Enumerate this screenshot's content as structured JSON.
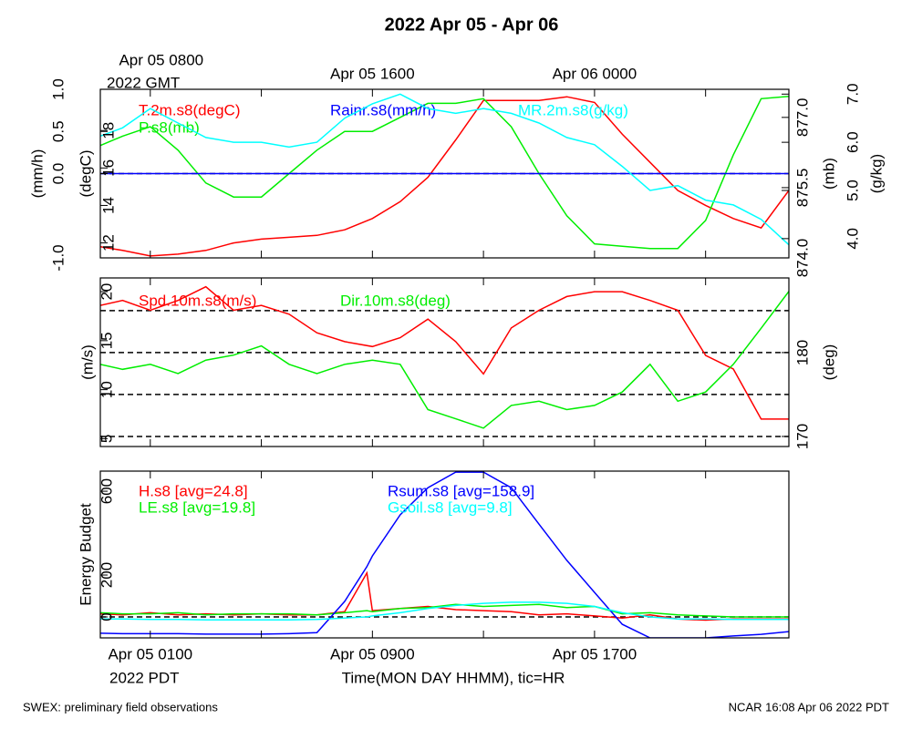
{
  "title": "2022 Apr 05 - Apr 06",
  "top_axis": {
    "labels": [
      {
        "value": 1,
        "label": "Apr 05 0800"
      },
      {
        "value": 9,
        "label": "Apr 05 1600"
      },
      {
        "value": 17,
        "label": "Apr 06 0000"
      }
    ],
    "sublabel": "2022 GMT"
  },
  "x_axis": {
    "xlim": [
      -0.8,
      24
    ],
    "xticks": [
      1,
      5,
      9,
      13,
      17,
      21
    ],
    "labels": [
      {
        "value": 1,
        "label": "Apr 05 0100"
      },
      {
        "value": 9,
        "label": "Apr 05 0900"
      },
      {
        "value": 17,
        "label": "Apr 05 1700"
      }
    ],
    "sublabel": "2022 PDT",
    "label": "Time(MON DAY HHMM), tic=HR"
  },
  "footer_left": "SWEX: preliminary field observations",
  "footer_right": "NCAR 16:08 Apr 06 2022 PDT",
  "chart_data": [
    {
      "type": "line",
      "x": [
        -0.8,
        0,
        1,
        2,
        3,
        4,
        5,
        6,
        7,
        8,
        9,
        10,
        11,
        12,
        13,
        14,
        15,
        16,
        17,
        18,
        19,
        20,
        21,
        22,
        23,
        24
      ],
      "axes": [
        {
          "label": "(mm/h)",
          "ylim": [
            -1,
            1
          ],
          "yticks": [
            {
              "value": -1,
              "label": "-1.0"
            },
            {
              "value": 0,
              "label": "0.0"
            },
            {
              "value": 0.5,
              "label": "0.5"
            },
            {
              "value": 1,
              "label": "1.0"
            }
          ],
          "grid_lines": [
            0
          ]
        },
        {
          "label": "(degC)",
          "ylim": [
            11.2,
            20.2
          ],
          "yticks": [
            12,
            14,
            16,
            18
          ]
        },
        {
          "label": "(mb)",
          "ylim": [
            874.0,
            877.6
          ],
          "yticks": [
            {
              "value": 874,
              "label": "874.0"
            },
            875.5,
            {
              "value": 877,
              "label": "877.0"
            }
          ]
        },
        {
          "label": "(g/kg)",
          "ylim": [
            3.6,
            7.1
          ],
          "yticks": [
            {
              "value": 4,
              "label": "4.0"
            },
            {
              "value": 5,
              "label": "5.0"
            },
            {
              "value": 6,
              "label": "6.0"
            },
            {
              "value": 7,
              "label": "7.0"
            }
          ]
        }
      ],
      "series": [
        {
          "name": "T.2m.s8(degC)",
          "color": "#ff0000",
          "axis": 1,
          "values": [
            11.8,
            11.6,
            11.3,
            11.4,
            11.6,
            12.0,
            12.2,
            12.3,
            12.4,
            12.7,
            13.3,
            14.2,
            15.5,
            17.5,
            19.6,
            19.6,
            19.6,
            19.8,
            19.5,
            17.8,
            16.3,
            14.8,
            14.0,
            13.3,
            12.8,
            14.8
          ]
        },
        {
          "name": "P.s8(mb)",
          "color": "#00ee00",
          "axis": 2,
          "values": [
            876.4,
            876.6,
            876.8,
            876.3,
            875.6,
            875.3,
            875.3,
            875.8,
            876.3,
            876.7,
            876.7,
            877.0,
            877.3,
            877.3,
            877.4,
            876.8,
            875.8,
            874.9,
            874.3,
            874.25,
            874.2,
            874.2,
            874.8,
            876.2,
            877.4,
            877.45
          ]
        },
        {
          "name": "Rainr.s8(mm/h)",
          "color": "#0000ff",
          "axis": 0,
          "values": [
            0,
            0,
            0,
            0,
            0,
            0,
            0,
            0,
            0,
            0,
            0,
            0,
            0,
            0,
            0,
            0,
            0,
            0,
            0,
            0,
            0,
            0,
            0,
            0,
            0,
            0
          ]
        },
        {
          "name": "MR.2m.s8(g/kg)",
          "color": "#00ffff",
          "axis": 3,
          "values": [
            6.13,
            6.3,
            6.7,
            6.4,
            6.1,
            6.0,
            6.0,
            5.9,
            6.0,
            6.5,
            6.8,
            7.0,
            6.7,
            6.6,
            6.7,
            6.6,
            6.4,
            6.1,
            5.95,
            5.5,
            5.0,
            5.1,
            4.8,
            4.7,
            4.4,
            3.87
          ]
        }
      ]
    },
    {
      "type": "line",
      "x": [
        -0.8,
        0,
        1,
        2,
        3,
        4,
        5,
        6,
        7,
        8,
        9,
        10,
        11,
        12,
        13,
        14,
        15,
        16,
        17,
        18,
        19,
        20,
        21,
        22,
        23,
        24
      ],
      "axes": [
        {
          "label": "(m/s)",
          "ylim": [
            4.2,
            21.4
          ],
          "yticks": [
            5,
            10,
            15,
            20
          ]
        },
        {
          "label": "(deg)",
          "ylim": [
            168.8,
            188.9
          ],
          "yticks": [
            170,
            180
          ],
          "grid_lines": [
            170,
            175,
            180,
            185
          ]
        }
      ],
      "series": [
        {
          "name": "Spd.10m.s8(m/s)",
          "color": "#ff0000",
          "axis": 0,
          "values": [
            18.6,
            19.1,
            18.1,
            19.1,
            20.5,
            18.1,
            18.6,
            17.7,
            15.8,
            14.9,
            14.4,
            15.3,
            17.2,
            14.9,
            11.6,
            16.3,
            18.1,
            19.5,
            20.0,
            20.0,
            19.1,
            18.1,
            13.5,
            12.1,
            7.0,
            7.0
          ]
        },
        {
          "name": "Dir.10m.s8(deg)",
          "color": "#00ee00",
          "axis": 1,
          "values": [
            178.6,
            178.0,
            178.6,
            177.5,
            179.1,
            179.7,
            180.8,
            178.6,
            177.5,
            178.6,
            179.1,
            178.6,
            173.2,
            172.1,
            171.0,
            173.7,
            174.2,
            173.2,
            173.7,
            175.3,
            178.6,
            174.2,
            175.3,
            178.6,
            182.9,
            187.3
          ]
        }
      ]
    },
    {
      "type": "line",
      "x": [
        -0.8,
        0,
        1,
        2,
        3,
        4,
        5,
        6,
        7,
        8,
        8.8,
        9,
        10,
        11,
        12,
        13,
        14,
        15,
        16,
        17,
        18,
        19,
        20,
        21,
        22,
        23,
        24
      ],
      "axes": [
        {
          "label": "Energy Budget",
          "ylim": [
            -100,
            696
          ],
          "yticks": [
            0,
            200,
            600
          ],
          "grid_lines": [
            0
          ]
        }
      ],
      "series": [
        {
          "name": "H.s8 [avg=24.8]",
          "color": "#ff0000",
          "axis": 0,
          "values": [
            15,
            10,
            20,
            10,
            15,
            10,
            15,
            10,
            10,
            25,
            210,
            30,
            40,
            50,
            35,
            30,
            25,
            10,
            15,
            5,
            -5,
            10,
            -10,
            -15,
            -10,
            -10,
            -10
          ]
        },
        {
          "name": "LE.s8 [avg=19.8]",
          "color": "#00ee00",
          "axis": 0,
          "values": [
            20,
            15,
            15,
            20,
            10,
            15,
            15,
            15,
            10,
            20,
            30,
            25,
            40,
            45,
            60,
            50,
            55,
            60,
            45,
            50,
            15,
            20,
            10,
            5,
            0,
            0,
            0
          ]
        },
        {
          "name": "Rsum.s8 [avg=158.9]",
          "color": "#0000ff",
          "axis": 0,
          "values": [
            -78,
            -80,
            -80,
            -80,
            -82,
            -82,
            -82,
            -80,
            -75,
            74,
            240,
            291,
            487,
            617,
            691,
            691,
            617,
            443,
            270,
            117,
            -35,
            -100,
            -100,
            -100,
            -91,
            -83,
            -70
          ]
        },
        {
          "name": "Gsoil.s8 [avg=9.8]",
          "color": "#00ffff",
          "axis": 0,
          "values": [
            -10,
            -10,
            -12,
            -12,
            -14,
            -14,
            -14,
            -14,
            -12,
            -5,
            0,
            5,
            20,
            40,
            55,
            65,
            70,
            70,
            65,
            50,
            20,
            0,
            -10,
            -10,
            -12,
            -12,
            -12
          ]
        }
      ]
    }
  ]
}
